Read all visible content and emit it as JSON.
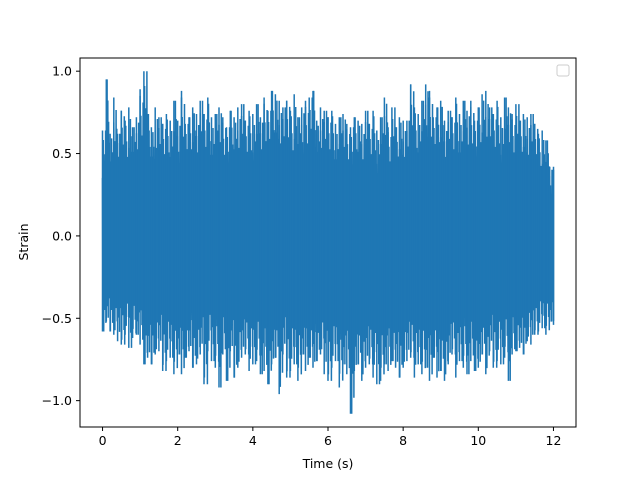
{
  "chart_data": {
    "type": "line",
    "title": "",
    "xlabel": "Time (s)",
    "ylabel": "Strain",
    "xlim": [
      -0.6,
      12.6
    ],
    "ylim": [
      -1.16,
      1.08
    ],
    "xticks": [
      0,
      2,
      4,
      6,
      8,
      10,
      12
    ],
    "xtick_labels": [
      "0",
      "2",
      "4",
      "6",
      "8",
      "10",
      "12"
    ],
    "yticks": [
      -1.0,
      -0.5,
      0.0,
      0.5,
      1.0
    ],
    "ytick_labels": [
      "−1.0",
      "−0.5",
      "0.0",
      "0.5",
      "1.0"
    ],
    "grid": false,
    "legend": {
      "placement": "upper-right",
      "entries": []
    },
    "series": [
      {
        "color": "#1f77b4",
        "x": [
          0.0,
          0.1,
          0.2,
          0.3,
          0.4,
          0.5,
          0.6,
          0.7,
          0.8,
          0.9,
          1.0,
          1.1,
          1.2,
          1.3,
          1.4,
          1.5,
          1.6,
          1.7,
          1.8,
          1.9,
          2.0,
          2.1,
          2.2,
          2.3,
          2.4,
          2.5,
          2.6,
          2.7,
          2.8,
          2.9,
          3.0,
          3.1,
          3.2,
          3.3,
          3.4,
          3.5,
          3.6,
          3.7,
          3.8,
          3.9,
          4.0,
          4.1,
          4.2,
          4.3,
          4.4,
          4.5,
          4.6,
          4.7,
          4.8,
          4.9,
          5.0,
          5.1,
          5.2,
          5.3,
          5.4,
          5.5,
          5.6,
          5.7,
          5.8,
          5.9,
          6.0,
          6.1,
          6.2,
          6.3,
          6.4,
          6.5,
          6.6,
          6.7,
          6.8,
          6.9,
          7.0,
          7.1,
          7.2,
          7.3,
          7.4,
          7.5,
          7.6,
          7.7,
          7.8,
          7.9,
          8.0,
          8.1,
          8.2,
          8.3,
          8.4,
          8.5,
          8.6,
          8.7,
          8.8,
          8.9,
          9.0,
          9.1,
          9.2,
          9.3,
          9.4,
          9.5,
          9.6,
          9.7,
          9.8,
          9.9,
          10.0,
          10.1,
          10.2,
          10.3,
          10.4,
          10.5,
          10.6,
          10.7,
          10.8,
          10.9,
          11.0,
          11.1,
          11.2,
          11.3,
          11.4,
          11.5,
          11.6,
          11.7,
          11.8,
          11.9,
          12.0
        ],
        "y_max": [
          0.64,
          0.95,
          0.62,
          0.84,
          0.62,
          0.76,
          0.7,
          0.78,
          0.66,
          0.72,
          0.89,
          1.0,
          0.74,
          0.66,
          0.78,
          0.72,
          0.68,
          0.74,
          0.7,
          0.82,
          0.7,
          0.88,
          0.68,
          0.72,
          0.78,
          0.74,
          0.82,
          0.74,
          0.84,
          0.72,
          0.74,
          0.78,
          0.72,
          0.66,
          0.76,
          0.72,
          0.78,
          0.8,
          0.7,
          0.76,
          0.74,
          0.8,
          0.72,
          0.84,
          0.76,
          0.88,
          0.86,
          0.82,
          0.78,
          0.82,
          0.76,
          0.86,
          0.72,
          0.78,
          0.82,
          0.84,
          0.88,
          0.7,
          0.78,
          0.76,
          0.72,
          0.76,
          0.68,
          0.72,
          0.74,
          0.68,
          0.66,
          0.72,
          0.7,
          0.68,
          0.76,
          0.68,
          0.76,
          0.64,
          0.72,
          0.84,
          0.66,
          0.78,
          0.66,
          0.72,
          0.7,
          0.7,
          0.92,
          0.78,
          0.74,
          0.82,
          0.92,
          0.88,
          0.72,
          0.78,
          0.82,
          0.7,
          0.76,
          0.72,
          0.84,
          0.74,
          0.82,
          0.76,
          0.82,
          0.7,
          0.78,
          0.86,
          0.88,
          0.78,
          0.74,
          0.82,
          0.72,
          0.84,
          0.78,
          0.74,
          0.8,
          0.7,
          0.74,
          0.72,
          0.74,
          0.68,
          0.62,
          0.64,
          0.58,
          0.42,
          0.42
        ],
        "y_min": [
          -0.58,
          -0.52,
          -0.58,
          -0.6,
          -0.64,
          -0.66,
          -0.6,
          -0.68,
          -0.62,
          -0.6,
          -0.66,
          -0.78,
          -0.74,
          -0.78,
          -0.72,
          -0.7,
          -0.82,
          -0.76,
          -0.74,
          -0.84,
          -0.72,
          -0.84,
          -0.74,
          -0.7,
          -0.8,
          -0.78,
          -0.72,
          -0.9,
          -0.7,
          -0.76,
          -0.8,
          -0.92,
          -0.72,
          -0.88,
          -0.7,
          -0.86,
          -0.8,
          -0.74,
          -0.72,
          -0.82,
          -0.78,
          -0.76,
          -0.84,
          -0.82,
          -0.9,
          -0.78,
          -0.74,
          -0.96,
          -0.72,
          -0.86,
          -0.82,
          -0.78,
          -0.88,
          -0.72,
          -0.82,
          -0.74,
          -0.8,
          -0.76,
          -0.72,
          -0.84,
          -0.88,
          -0.8,
          -0.76,
          -0.92,
          -0.78,
          -0.84,
          -1.08,
          -0.82,
          -0.78,
          -0.88,
          -0.8,
          -0.78,
          -0.86,
          -0.9,
          -0.88,
          -0.78,
          -0.82,
          -0.76,
          -0.8,
          -0.86,
          -0.8,
          -0.76,
          -0.74,
          -0.86,
          -0.78,
          -0.84,
          -0.8,
          -0.88,
          -0.74,
          -0.86,
          -0.82,
          -0.88,
          -0.78,
          -0.72,
          -0.86,
          -0.76,
          -0.8,
          -0.84,
          -0.76,
          -0.82,
          -0.8,
          -0.72,
          -0.84,
          -0.7,
          -0.8,
          -0.76,
          -0.78,
          -0.74,
          -0.88,
          -0.72,
          -0.7,
          -0.68,
          -0.72,
          -0.64,
          -0.66,
          -0.6,
          -0.58,
          -0.56,
          -0.6,
          -0.52,
          -0.54
        ]
      }
    ]
  }
}
